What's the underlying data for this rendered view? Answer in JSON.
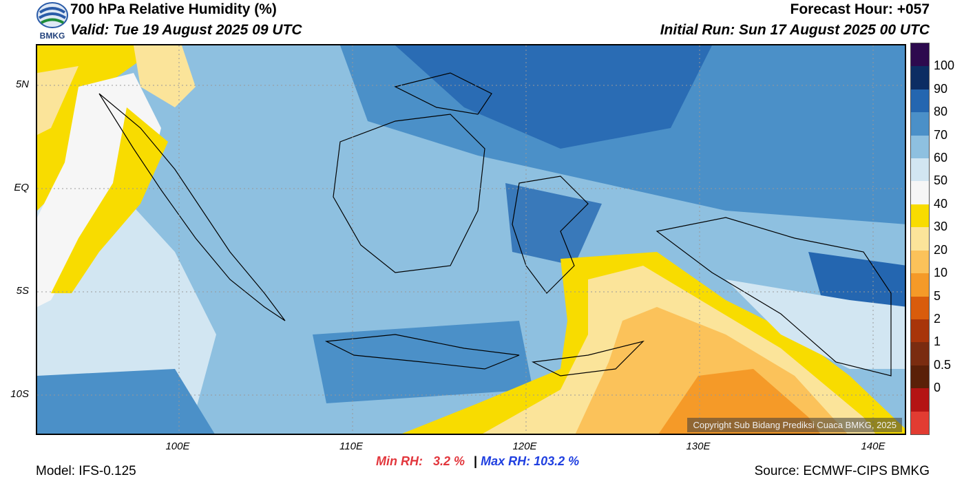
{
  "header": {
    "title": "700 hPa Relative Humidity (%)",
    "valid": "Valid: Tue 19 August 2025 09 UTC",
    "forecast_hour": "Forecast Hour: +057",
    "initial_run": "Initial Run: Sun 17 August 2025 00 UTC",
    "logo_text": "BMKG"
  },
  "map": {
    "lat_labels": [
      "5N",
      "EQ",
      "5S",
      "10S"
    ],
    "lon_labels": [
      "100E",
      "110E",
      "120E",
      "130E",
      "140E"
    ],
    "copyright": "Copyright Sub Bidang Prediksi Cuaca BMKG, 2025"
  },
  "colorbar": {
    "labels": [
      "100",
      "90",
      "80",
      "70",
      "60",
      "50",
      "40",
      "30",
      "20",
      "10",
      "5",
      "2",
      "1",
      "0.5",
      "0"
    ],
    "colors": [
      "#2d0a4e",
      "#0c2d63",
      "#2466b0",
      "#4b90c8",
      "#8ec0e0",
      "#d2e6f2",
      "#f6f6f6",
      "#f8dc00",
      "#fbe49a",
      "#fbc25a",
      "#f59a28",
      "#d95c0c",
      "#a8350a",
      "#7a2c10",
      "#5a2008",
      "#b41414",
      "#e23c32"
    ]
  },
  "stats": {
    "min_label": "Min RH:",
    "min_value": "3.2 %",
    "separator": "|",
    "max_label": "Max RH:",
    "max_value": "103.2 %"
  },
  "footer": {
    "model": "Model: IFS-0.125",
    "source": "Source: ECMWF-CIPS BMKG"
  }
}
